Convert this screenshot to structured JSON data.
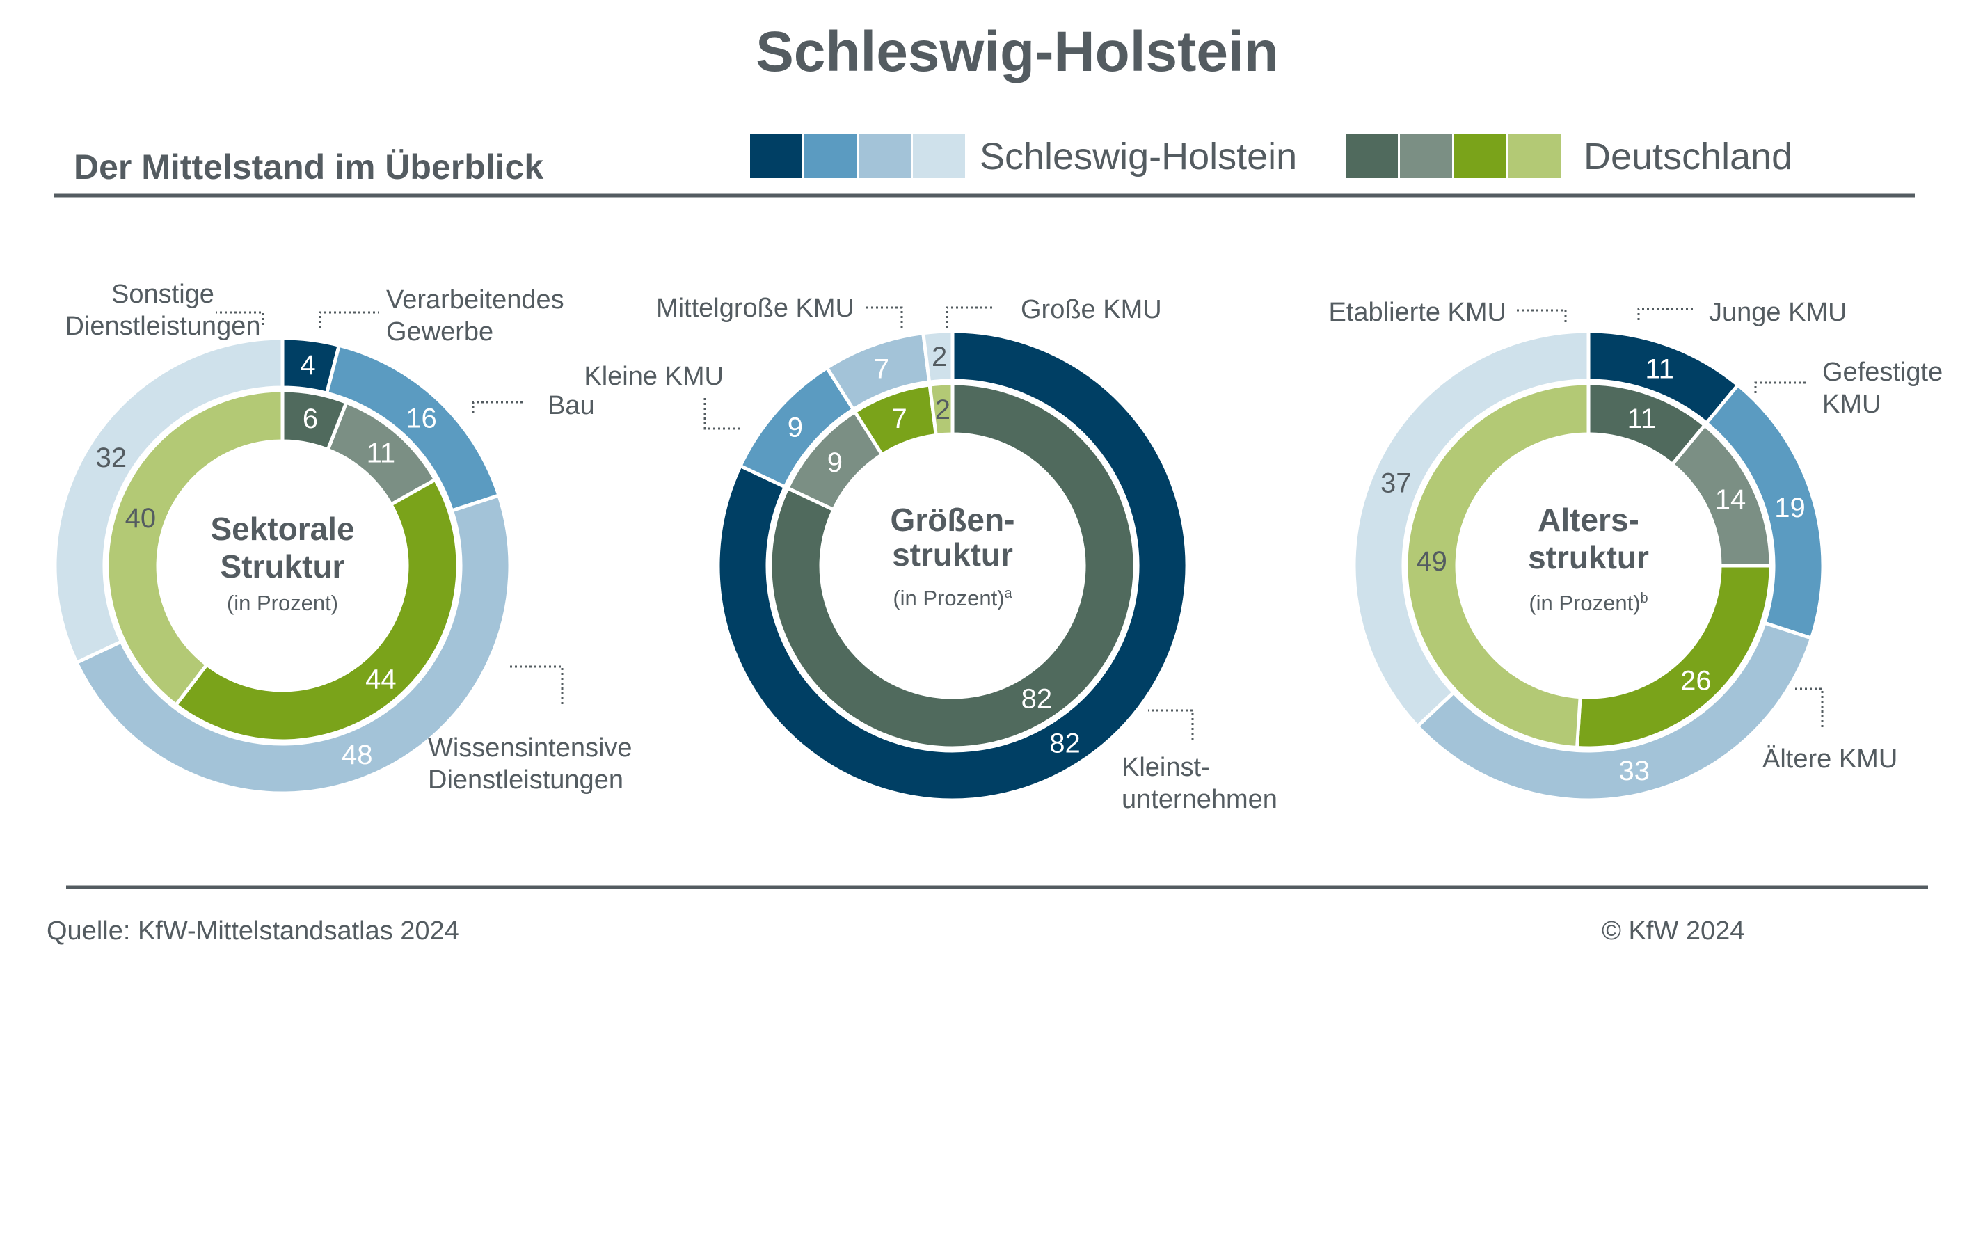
{
  "header": {
    "title": "Schleswig-Holstein",
    "subtitle": "Der Mittelstand im Überblick"
  },
  "legend": {
    "sh_label": "Schleswig-Holstein",
    "de_label": "Deutschland",
    "sh_colors": [
      "#003f64",
      "#5b9bc1",
      "#a3c3d8",
      "#cfe1eb"
    ],
    "de_colors": [
      "#506a5d",
      "#7b8f84",
      "#7aa31a",
      "#b3c975"
    ]
  },
  "footer": {
    "source": "Quelle: KfW-Mittelstandsatlas 2024",
    "copyright": "© KfW 2024"
  },
  "chart_data": [
    {
      "type": "donut",
      "center_title": [
        "Sektorale",
        "Struktur"
      ],
      "center_note": "(in Prozent)",
      "center_note_sup": "",
      "categories": [
        "Verarbeitendes Gewerbe",
        "Bau",
        "Wissensintensive Dienstleistungen",
        "Sonstige Dienstleistungen"
      ],
      "series": [
        {
          "name": "Schleswig-Holstein",
          "ring": "outer",
          "values": [
            4,
            16,
            48,
            32
          ]
        },
        {
          "name": "Deutschland",
          "ring": "inner",
          "values": [
            6,
            11,
            44,
            40
          ]
        }
      ]
    },
    {
      "type": "donut",
      "center_title": [
        "Größen-",
        "struktur"
      ],
      "center_note": "(in Prozent)",
      "center_note_sup": "a",
      "categories": [
        "Kleinstunternehmen",
        "Kleine KMU",
        "Mittelgroße KMU",
        "Große KMU"
      ],
      "series": [
        {
          "name": "Schleswig-Holstein",
          "ring": "outer",
          "values": [
            82,
            9,
            7,
            2
          ]
        },
        {
          "name": "Deutschland",
          "ring": "inner",
          "values": [
            82,
            9,
            7,
            2
          ]
        }
      ]
    },
    {
      "type": "donut",
      "center_title": [
        "Alters-",
        "struktur"
      ],
      "center_note": "(in Prozent)",
      "center_note_sup": "b",
      "categories": [
        "Junge KMU",
        "Gefestigte KMU",
        "Ältere KMU",
        "Etablierte KMU"
      ],
      "series": [
        {
          "name": "Schleswig-Holstein",
          "ring": "outer",
          "values": [
            11,
            19,
            33,
            37
          ]
        },
        {
          "name": "Deutschland",
          "ring": "inner",
          "values": [
            11,
            14,
            26,
            49
          ]
        }
      ]
    }
  ],
  "category_labels": [
    [
      [
        "Verarbeitendes",
        "Gewerbe"
      ],
      [
        "Bau"
      ],
      [
        "Wissensintensive",
        "Dienstleistungen"
      ],
      [
        "Sonstige",
        "Dienstleistungen"
      ]
    ],
    [
      [
        "Kleinst-",
        "unternehmen"
      ],
      [
        "Kleine KMU"
      ],
      [
        "Mittelgroße KMU"
      ],
      [
        "Große KMU"
      ]
    ],
    [
      [
        "Junge KMU"
      ],
      [
        "Gefestigte",
        "KMU"
      ],
      [
        "Ältere KMU"
      ],
      [
        "Etablierte KMU"
      ]
    ]
  ]
}
